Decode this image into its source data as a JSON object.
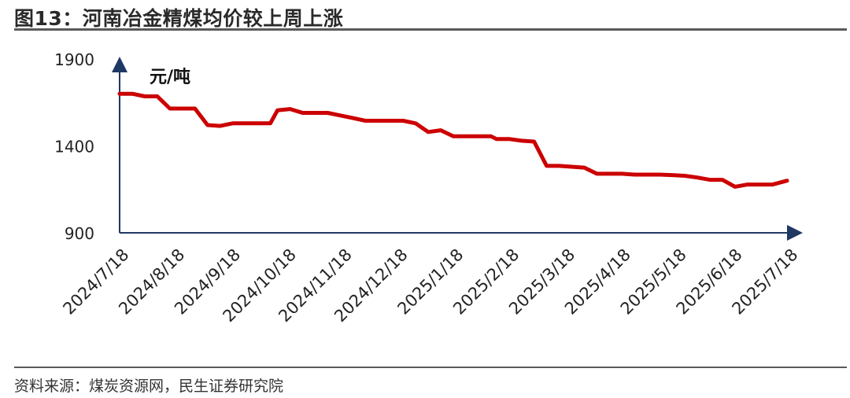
{
  "title": "图13：河南冶金精煤均价较上周上涨",
  "source": "资料来源：煤炭资源网，民生证券研究院",
  "colors": {
    "line": "#cc0000",
    "axis": "#1f3864",
    "rule": "#5a5a5a"
  },
  "chart_data": {
    "type": "line",
    "ylabel": "元/吨",
    "ylim": [
      900,
      1900
    ],
    "yticks": [
      900,
      1400,
      1900
    ],
    "x_range": [
      "2024-07-18",
      "2025-07-25"
    ],
    "xtick_labels": [
      "2024/7/18",
      "2024/8/18",
      "2024/9/18",
      "2024/10/18",
      "2024/11/18",
      "2024/12/18",
      "2025/1/18",
      "2025/2/18",
      "2025/3/18",
      "2025/4/18",
      "2025/5/18",
      "2025/6/18",
      "2025/7/18"
    ],
    "series": [
      {
        "points": [
          [
            "2024-07-18",
            1700
          ],
          [
            "2024-07-25",
            1700
          ],
          [
            "2024-08-01",
            1685
          ],
          [
            "2024-08-08",
            1685
          ],
          [
            "2024-08-15",
            1615
          ],
          [
            "2024-08-22",
            1615
          ],
          [
            "2024-08-29",
            1615
          ],
          [
            "2024-09-05",
            1520
          ],
          [
            "2024-09-12",
            1515
          ],
          [
            "2024-09-19",
            1530
          ],
          [
            "2024-09-26",
            1530
          ],
          [
            "2024-10-03",
            1530
          ],
          [
            "2024-10-10",
            1530
          ],
          [
            "2024-10-14",
            1605
          ],
          [
            "2024-10-21",
            1612
          ],
          [
            "2024-10-28",
            1590
          ],
          [
            "2024-11-04",
            1590
          ],
          [
            "2024-11-11",
            1590
          ],
          [
            "2024-11-18",
            1575
          ],
          [
            "2024-11-25",
            1560
          ],
          [
            "2024-12-02",
            1545
          ],
          [
            "2024-12-09",
            1545
          ],
          [
            "2024-12-16",
            1545
          ],
          [
            "2024-12-23",
            1545
          ],
          [
            "2024-12-30",
            1530
          ],
          [
            "2025-01-06",
            1480
          ],
          [
            "2025-01-13",
            1490
          ],
          [
            "2025-01-20",
            1455
          ],
          [
            "2025-01-27",
            1455
          ],
          [
            "2025-02-03",
            1455
          ],
          [
            "2025-02-10",
            1455
          ],
          [
            "2025-02-13",
            1440
          ],
          [
            "2025-02-20",
            1440
          ],
          [
            "2025-02-27",
            1430
          ],
          [
            "2025-03-06",
            1425
          ],
          [
            "2025-03-13",
            1285
          ],
          [
            "2025-03-20",
            1285
          ],
          [
            "2025-03-27",
            1280
          ],
          [
            "2025-04-03",
            1275
          ],
          [
            "2025-04-10",
            1240
          ],
          [
            "2025-04-17",
            1240
          ],
          [
            "2025-04-24",
            1240
          ],
          [
            "2025-05-01",
            1235
          ],
          [
            "2025-05-08",
            1235
          ],
          [
            "2025-05-15",
            1235
          ],
          [
            "2025-05-22",
            1232
          ],
          [
            "2025-05-29",
            1228
          ],
          [
            "2025-06-05",
            1218
          ],
          [
            "2025-06-12",
            1205
          ],
          [
            "2025-06-19",
            1205
          ],
          [
            "2025-06-26",
            1165
          ],
          [
            "2025-07-03",
            1178
          ],
          [
            "2025-07-10",
            1178
          ],
          [
            "2025-07-17",
            1178
          ],
          [
            "2025-07-25",
            1200
          ]
        ]
      }
    ]
  }
}
